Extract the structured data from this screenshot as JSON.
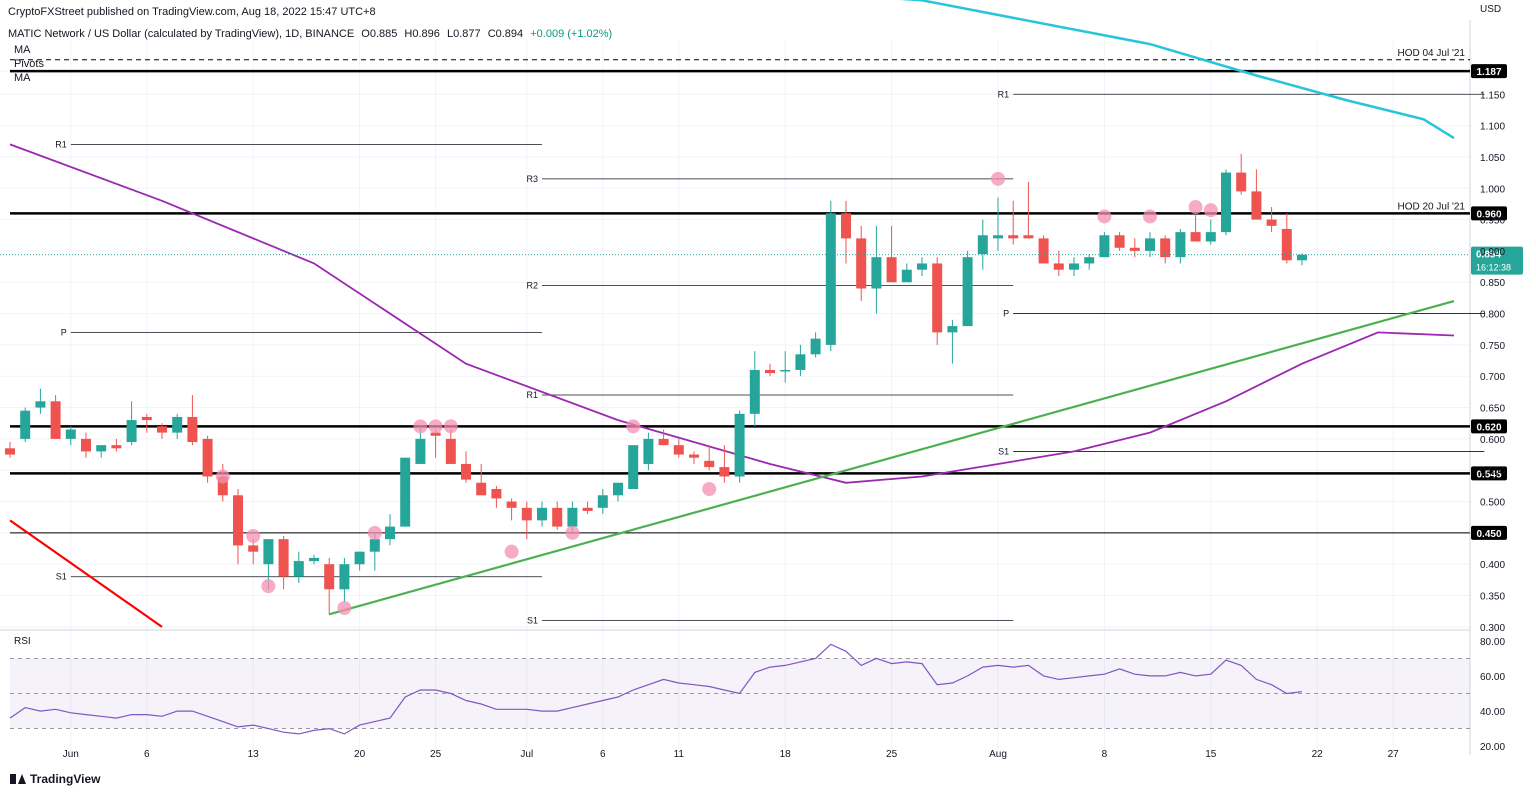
{
  "header": {
    "published": "CryptoFXStreet published on TradingView.com, Aug 18, 2022 15:47 UTC+8",
    "symbol": "MATIC Network / US Dollar (calculated by TradingView), 1D, BINANCE",
    "open": "O0.885",
    "high": "H0.896",
    "low": "L0.877",
    "close": "C0.894",
    "change": "+0.009 (+1.02%)",
    "indicators": [
      "MA",
      "Pivots",
      "MA"
    ]
  },
  "footer": {
    "brand": "TradingView"
  },
  "colors": {
    "up": "#26a69a",
    "down": "#ef5350",
    "ma_fast": "#9c27b0",
    "ma_slow": "#26c6da",
    "trendline": "#4caf50",
    "resistance": "#ff0000",
    "marker": "#f48fb1",
    "rsi": "#7e57c2"
  },
  "chart_data": [
    {
      "type": "candlestick",
      "currency_label": "USD",
      "y_ticks": [
        0.3,
        0.35,
        0.4,
        0.45,
        0.5,
        0.55,
        0.6,
        0.65,
        0.7,
        0.75,
        0.8,
        0.85,
        0.9,
        0.95,
        1.0,
        1.05,
        1.1,
        1.15,
        1.187
      ],
      "y_range": [
        0.295,
        1.235
      ],
      "x_labels": [
        {
          "label": "Jun",
          "date": "2022-06-01"
        },
        {
          "label": "6",
          "date": "2022-06-06"
        },
        {
          "label": "13",
          "date": "2022-06-13"
        },
        {
          "label": "20",
          "date": "2022-06-20"
        },
        {
          "label": "25",
          "date": "2022-06-25"
        },
        {
          "label": "Jul",
          "date": "2022-07-01"
        },
        {
          "label": "6",
          "date": "2022-07-06"
        },
        {
          "label": "11",
          "date": "2022-07-11"
        },
        {
          "label": "18",
          "date": "2022-07-18"
        },
        {
          "label": "25",
          "date": "2022-07-25"
        },
        {
          "label": "Aug",
          "date": "2022-08-01"
        },
        {
          "label": "8",
          "date": "2022-08-08"
        },
        {
          "label": "15",
          "date": "2022-08-15"
        },
        {
          "label": "22",
          "date": "2022-08-22"
        },
        {
          "label": "27",
          "date": "2022-08-27"
        }
      ],
      "x_range": [
        "2022-05-28",
        "2022-08-31"
      ],
      "start_date": "2022-05-28",
      "candles_ohlc": [
        [
          0.585,
          0.595,
          0.57,
          0.575
        ],
        [
          0.6,
          0.65,
          0.595,
          0.645
        ],
        [
          0.65,
          0.68,
          0.64,
          0.66
        ],
        [
          0.66,
          0.67,
          0.6,
          0.6
        ],
        [
          0.6,
          0.62,
          0.59,
          0.615
        ],
        [
          0.6,
          0.61,
          0.57,
          0.58
        ],
        [
          0.58,
          0.59,
          0.57,
          0.59
        ],
        [
          0.59,
          0.6,
          0.58,
          0.585
        ],
        [
          0.595,
          0.66,
          0.59,
          0.63
        ],
        [
          0.635,
          0.64,
          0.61,
          0.63
        ],
        [
          0.62,
          0.625,
          0.6,
          0.61
        ],
        [
          0.61,
          0.64,
          0.6,
          0.635
        ],
        [
          0.635,
          0.67,
          0.59,
          0.595
        ],
        [
          0.6,
          0.605,
          0.53,
          0.54
        ],
        [
          0.54,
          0.56,
          0.5,
          0.51
        ],
        [
          0.51,
          0.52,
          0.4,
          0.43
        ],
        [
          0.43,
          0.44,
          0.4,
          0.42
        ],
        [
          0.4,
          0.44,
          0.36,
          0.44
        ],
        [
          0.44,
          0.445,
          0.36,
          0.38
        ],
        [
          0.38,
          0.42,
          0.37,
          0.405
        ],
        [
          0.405,
          0.415,
          0.4,
          0.41
        ],
        [
          0.4,
          0.41,
          0.32,
          0.36
        ],
        [
          0.36,
          0.41,
          0.34,
          0.4
        ],
        [
          0.4,
          0.42,
          0.39,
          0.42
        ],
        [
          0.42,
          0.45,
          0.39,
          0.44
        ],
        [
          0.44,
          0.48,
          0.43,
          0.46
        ],
        [
          0.46,
          0.57,
          0.46,
          0.57
        ],
        [
          0.56,
          0.62,
          0.56,
          0.6
        ],
        [
          0.61,
          0.615,
          0.57,
          0.605
        ],
        [
          0.6,
          0.615,
          0.56,
          0.56
        ],
        [
          0.56,
          0.58,
          0.53,
          0.535
        ],
        [
          0.53,
          0.56,
          0.52,
          0.51
        ],
        [
          0.52,
          0.525,
          0.49,
          0.505
        ],
        [
          0.5,
          0.505,
          0.47,
          0.49
        ],
        [
          0.49,
          0.5,
          0.44,
          0.47
        ],
        [
          0.47,
          0.5,
          0.46,
          0.49
        ],
        [
          0.49,
          0.5,
          0.455,
          0.46
        ],
        [
          0.46,
          0.5,
          0.45,
          0.49
        ],
        [
          0.49,
          0.5,
          0.48,
          0.485
        ],
        [
          0.49,
          0.52,
          0.48,
          0.51
        ],
        [
          0.51,
          0.52,
          0.5,
          0.53
        ],
        [
          0.52,
          0.56,
          0.52,
          0.59
        ],
        [
          0.56,
          0.61,
          0.55,
          0.6
        ],
        [
          0.6,
          0.615,
          0.59,
          0.59
        ],
        [
          0.59,
          0.6,
          0.57,
          0.575
        ],
        [
          0.575,
          0.58,
          0.56,
          0.57
        ],
        [
          0.565,
          0.59,
          0.55,
          0.555
        ],
        [
          0.555,
          0.59,
          0.53,
          0.54
        ],
        [
          0.54,
          0.645,
          0.53,
          0.64
        ],
        [
          0.64,
          0.74,
          0.62,
          0.71
        ],
        [
          0.71,
          0.72,
          0.7,
          0.705
        ],
        [
          0.71,
          0.74,
          0.69,
          0.71
        ],
        [
          0.71,
          0.75,
          0.7,
          0.735
        ],
        [
          0.735,
          0.77,
          0.73,
          0.76
        ],
        [
          0.75,
          0.98,
          0.74,
          0.96
        ],
        [
          0.96,
          0.98,
          0.88,
          0.92
        ],
        [
          0.92,
          0.94,
          0.82,
          0.84
        ],
        [
          0.84,
          0.94,
          0.8,
          0.89
        ],
        [
          0.89,
          0.94,
          0.85,
          0.85
        ],
        [
          0.85,
          0.88,
          0.85,
          0.87
        ],
        [
          0.87,
          0.89,
          0.86,
          0.88
        ],
        [
          0.88,
          0.89,
          0.75,
          0.77
        ],
        [
          0.77,
          0.79,
          0.72,
          0.78
        ],
        [
          0.78,
          0.9,
          0.78,
          0.89
        ],
        [
          0.895,
          0.95,
          0.87,
          0.925
        ],
        [
          0.92,
          0.985,
          0.9,
          0.925
        ],
        [
          0.925,
          0.98,
          0.91,
          0.92
        ],
        [
          0.925,
          1.01,
          0.92,
          0.92
        ],
        [
          0.92,
          0.925,
          0.88,
          0.88
        ],
        [
          0.88,
          0.9,
          0.86,
          0.87
        ],
        [
          0.87,
          0.89,
          0.86,
          0.88
        ],
        [
          0.88,
          0.895,
          0.87,
          0.89
        ],
        [
          0.89,
          0.93,
          0.89,
          0.925
        ],
        [
          0.925,
          0.93,
          0.9,
          0.905
        ],
        [
          0.905,
          0.92,
          0.89,
          0.9
        ],
        [
          0.9,
          0.93,
          0.89,
          0.92
        ],
        [
          0.92,
          0.925,
          0.88,
          0.89
        ],
        [
          0.89,
          0.935,
          0.88,
          0.93
        ],
        [
          0.93,
          0.96,
          0.92,
          0.915
        ],
        [
          0.915,
          0.95,
          0.91,
          0.93
        ],
        [
          0.93,
          1.03,
          0.925,
          1.025
        ],
        [
          1.025,
          1.055,
          0.99,
          0.995
        ],
        [
          0.995,
          1.03,
          0.95,
          0.95
        ],
        [
          0.95,
          0.97,
          0.93,
          0.94
        ],
        [
          0.935,
          0.96,
          0.88,
          0.885
        ],
        [
          0.885,
          0.896,
          0.877,
          0.894
        ]
      ],
      "moving_averages": [
        {
          "points": [
            [
              0,
              1.07
            ],
            [
              10,
              0.98
            ],
            [
              20,
              0.88
            ],
            [
              30,
              0.72
            ],
            [
              40,
              0.63
            ],
            [
              50,
              0.56
            ],
            [
              55,
              0.53
            ],
            [
              60,
              0.54
            ],
            [
              65,
              0.56
            ],
            [
              70,
              0.58
            ],
            [
              75,
              0.61
            ],
            [
              80,
              0.66
            ],
            [
              85,
              0.72
            ],
            [
              90,
              0.77
            ],
            [
              95,
              0.765
            ]
          ]
        },
        {
          "points": [
            [
              0,
              1.45
            ],
            [
              30,
              1.35
            ],
            [
              60,
              1.3
            ],
            [
              75,
              1.23
            ],
            [
              82,
              1.18
            ],
            [
              88,
              1.14
            ],
            [
              93,
              1.11
            ],
            [
              95,
              1.08
            ]
          ]
        }
      ],
      "trendlines": [
        {
          "name": "support",
          "from": [
            21,
            0.32
          ],
          "to": [
            95,
            0.82
          ]
        },
        {
          "name": "resistance",
          "from": [
            0,
            0.47
          ],
          "to": [
            10,
            0.3
          ]
        }
      ],
      "horizontal_levels": [
        {
          "value": 1.187,
          "label": "1.187",
          "style": "thick"
        },
        {
          "value": 0.96,
          "label": "0.960",
          "style": "thick",
          "annotation": "HOD 20 Jul '21"
        },
        {
          "value": 0.62,
          "label": "0.620",
          "style": "thick"
        },
        {
          "value": 0.545,
          "label": "0.545",
          "style": "thick"
        },
        {
          "value": 0.45,
          "label": "0.450",
          "style": "thin"
        },
        {
          "value": 1.205,
          "label": "",
          "style": "dashed",
          "annotation": "HOD 04 Jul '21"
        }
      ],
      "pivots": [
        {
          "label": "R1",
          "value": 1.07,
          "start": 4,
          "end": 35
        },
        {
          "label": "P",
          "value": 0.77,
          "start": 4,
          "end": 35
        },
        {
          "label": "S1",
          "value": 0.38,
          "start": 4,
          "end": 35
        },
        {
          "label": "R3",
          "value": 1.015,
          "start": 35,
          "end": 66
        },
        {
          "label": "R2",
          "value": 0.845,
          "start": 35,
          "end": 66
        },
        {
          "label": "R1",
          "value": 0.67,
          "start": 35,
          "end": 66
        },
        {
          "label": "S1",
          "value": 0.31,
          "start": 35,
          "end": 66
        },
        {
          "label": "R1",
          "value": 1.15,
          "start": 66,
          "end": 97
        },
        {
          "label": "P",
          "value": 0.8,
          "start": 66,
          "end": 97
        },
        {
          "label": "S1",
          "value": 0.58,
          "start": 66,
          "end": 97
        }
      ],
      "markers": [
        [
          14,
          0.54
        ],
        [
          16,
          0.445
        ],
        [
          17,
          0.365
        ],
        [
          22,
          0.33
        ],
        [
          24,
          0.45
        ],
        [
          27,
          0.62
        ],
        [
          28,
          0.62
        ],
        [
          29,
          0.62
        ],
        [
          33,
          0.42
        ],
        [
          37,
          0.45
        ],
        [
          41,
          0.62
        ],
        [
          46,
          0.52
        ],
        [
          65,
          1.015
        ],
        [
          72,
          0.955
        ],
        [
          75,
          0.955
        ],
        [
          78,
          0.97
        ],
        [
          79,
          0.965
        ]
      ],
      "current_price": {
        "value": 0.894,
        "label": "0.894",
        "countdown": "16:12:38"
      }
    },
    {
      "type": "line",
      "name": "RSI",
      "y_ticks": [
        20.0,
        40.0,
        60.0,
        80.0
      ],
      "y_range": [
        15,
        85
      ],
      "band": [
        30,
        70
      ],
      "midline": 50,
      "values": [
        36,
        42,
        40,
        41,
        39,
        38,
        37,
        36,
        38,
        38,
        37,
        40,
        40,
        37,
        34,
        31,
        32,
        30,
        28,
        27,
        29,
        30,
        27,
        32,
        34,
        36,
        48,
        52,
        52,
        50,
        46,
        44,
        41,
        41,
        41,
        40,
        40,
        42,
        44,
        46,
        48,
        52,
        55,
        58,
        56,
        55,
        54,
        52,
        50,
        62,
        65,
        66,
        68,
        70,
        78,
        74,
        66,
        70,
        67,
        68,
        67,
        55,
        56,
        60,
        65,
        66,
        65,
        66,
        60,
        58,
        59,
        60,
        61,
        64,
        61,
        60,
        60,
        62,
        60,
        61,
        69,
        66,
        58,
        55,
        50,
        51
      ]
    }
  ]
}
